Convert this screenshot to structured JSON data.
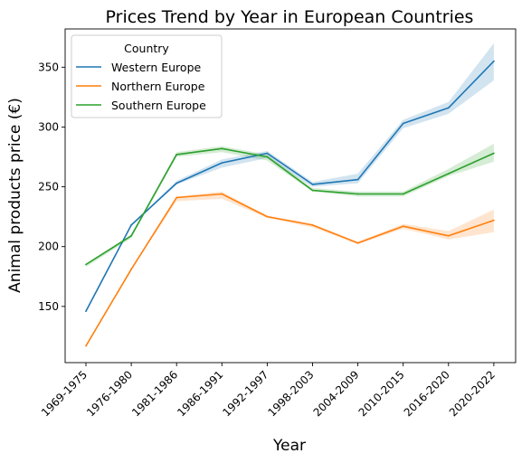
{
  "chart_data": {
    "type": "line",
    "title": "Prices Trend by Year in European Countries",
    "xlabel": "Year",
    "ylabel": "Animal products price (€)",
    "categories": [
      "1969-1975",
      "1976-1980",
      "1981-1986",
      "1986-1991",
      "1992-1997",
      "1998-2003",
      "2004-2009",
      "2010-2015",
      "2016-2020",
      "2020-2022"
    ],
    "yticks": [
      150,
      200,
      250,
      300,
      350
    ],
    "ylim": [
      103,
      382
    ],
    "grid": false,
    "legend": {
      "title": "Country",
      "placement": "top-left"
    },
    "series": [
      {
        "name": "Western Europe",
        "color": "#1f77b4",
        "values": [
          146,
          218,
          253,
          270,
          278,
          252,
          256,
          303,
          316,
          355
        ],
        "ci_low": [
          146,
          218,
          252,
          266,
          274,
          250,
          253,
          299,
          311,
          339
        ],
        "ci_high": [
          146,
          218,
          255,
          273,
          280,
          254,
          261,
          306,
          321,
          370
        ]
      },
      {
        "name": "Northern Europe",
        "color": "#ff7f0e",
        "values": [
          117,
          181,
          241,
          244,
          225,
          218,
          203,
          217,
          209,
          222
        ],
        "ci_low": [
          117,
          181,
          238,
          240,
          224,
          216,
          202,
          215,
          206,
          212
        ],
        "ci_high": [
          117,
          181,
          242,
          246,
          226,
          219,
          204,
          219,
          213,
          231
        ]
      },
      {
        "name": "Southern Europe",
        "color": "#2ca02c",
        "values": [
          185,
          209,
          277,
          282,
          275,
          247,
          244,
          244,
          261,
          278
        ],
        "ci_low": [
          183,
          207,
          275,
          279,
          272,
          246,
          242,
          242,
          259,
          271
        ],
        "ci_high": [
          186,
          210,
          279,
          284,
          277,
          249,
          246,
          246,
          265,
          286
        ]
      }
    ]
  }
}
